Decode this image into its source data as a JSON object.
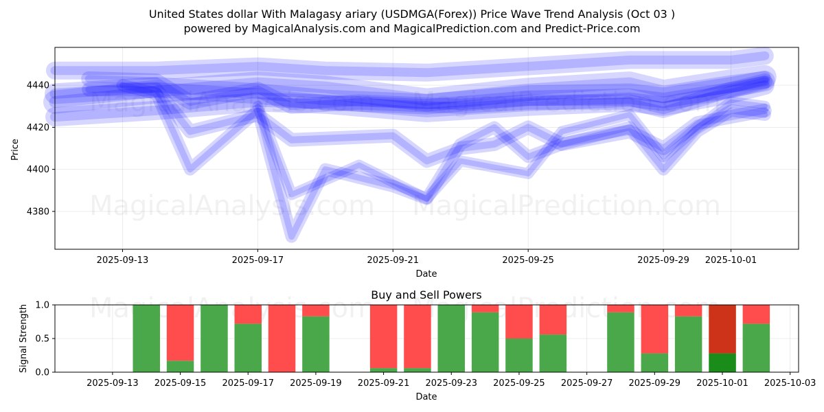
{
  "chart_data": [
    {
      "type": "line",
      "title": "United States dollar With Malagasy ariary (USDMGA(Forex)) Price Wave Trend Analysis (Oct 03 )",
      "subtitle": "powered by MagicalAnalysis.com and MagicalPrediction.com and Predict-Price.com",
      "xlabel": "Date",
      "ylabel": "Price",
      "xlim": [
        "2025-09-11",
        "2025-10-03"
      ],
      "ylim": [
        4362,
        4458
      ],
      "x_ticks": [
        "2025-09-13",
        "2025-09-17",
        "2025-09-21",
        "2025-09-25",
        "2025-09-29",
        "2025-10-01"
      ],
      "y_ticks": [
        4380,
        4400,
        4420,
        4440
      ],
      "grid": true,
      "watermarks": [
        "MagicalAnalysis.com",
        "MagicalPrediction.com",
        "MagicalAnalysis.com",
        "MagicalPrediction.com"
      ],
      "color": "#0000ff",
      "series": [
        {
          "points": [
            [
              "2025-09-11",
              4432
            ],
            [
              "2025-09-14",
              4437
            ],
            [
              "2025-09-17",
              4441
            ],
            [
              "2025-09-19",
              4439
            ],
            [
              "2025-09-22",
              4433
            ],
            [
              "2025-09-25",
              4438
            ],
            [
              "2025-09-28",
              4441
            ],
            [
              "2025-09-29",
              4437
            ],
            [
              "2025-10-01",
              4442
            ],
            [
              "2025-10-02",
              4444
            ]
          ]
        },
        {
          "points": [
            [
              "2025-09-11",
              4436
            ],
            [
              "2025-09-14",
              4439
            ],
            [
              "2025-09-17",
              4436
            ],
            [
              "2025-09-19",
              4433
            ],
            [
              "2025-09-22",
              4431
            ],
            [
              "2025-09-25",
              4435
            ],
            [
              "2025-09-28",
              4436
            ],
            [
              "2025-09-29",
              4434
            ],
            [
              "2025-10-01",
              4439
            ],
            [
              "2025-10-02",
              4442
            ]
          ]
        },
        {
          "points": [
            [
              "2025-09-11",
              4425
            ],
            [
              "2025-09-14",
              4428
            ],
            [
              "2025-09-17",
              4432
            ],
            [
              "2025-09-19",
              4431
            ],
            [
              "2025-09-22",
              4427
            ],
            [
              "2025-09-25",
              4430
            ],
            [
              "2025-09-28",
              4432
            ],
            [
              "2025-09-29",
              4430
            ],
            [
              "2025-10-01",
              4436
            ],
            [
              "2025-10-02",
              4440
            ]
          ]
        },
        {
          "points": [
            [
              "2025-09-11",
              4447
            ],
            [
              "2025-09-14",
              4447
            ],
            [
              "2025-09-17",
              4449
            ],
            [
              "2025-09-19",
              4447
            ],
            [
              "2025-09-22",
              4446
            ],
            [
              "2025-09-25",
              4449
            ],
            [
              "2025-09-28",
              4452
            ],
            [
              "2025-09-29",
              4452
            ],
            [
              "2025-10-01",
              4452
            ],
            [
              "2025-10-02",
              4454
            ]
          ]
        },
        {
          "points": [
            [
              "2025-09-12",
              4443
            ],
            [
              "2025-09-14",
              4442
            ],
            [
              "2025-09-15",
              4432
            ],
            [
              "2025-09-17",
              4438
            ],
            [
              "2025-09-18",
              4430
            ],
            [
              "2025-09-20",
              4432
            ],
            [
              "2025-09-23",
              4430
            ],
            [
              "2025-09-25",
              4432
            ],
            [
              "2025-09-28",
              4432
            ],
            [
              "2025-09-29",
              4428
            ],
            [
              "2025-10-01",
              4438
            ],
            [
              "2025-10-02",
              4442
            ]
          ]
        },
        {
          "points": [
            [
              "2025-09-12",
              4438
            ],
            [
              "2025-09-14",
              4438
            ],
            [
              "2025-09-15",
              4418
            ],
            [
              "2025-09-16",
              4422
            ],
            [
              "2025-09-17",
              4426
            ],
            [
              "2025-09-18",
              4414
            ],
            [
              "2025-09-21",
              4416
            ],
            [
              "2025-09-22",
              4404
            ],
            [
              "2025-09-23",
              4410
            ],
            [
              "2025-09-24",
              4412
            ],
            [
              "2025-09-25",
              4420
            ],
            [
              "2025-09-26",
              4412
            ],
            [
              "2025-09-28",
              4418
            ],
            [
              "2025-09-29",
              4410
            ],
            [
              "2025-09-30",
              4422
            ],
            [
              "2025-10-02",
              4428
            ]
          ]
        },
        {
          "points": [
            [
              "2025-09-13",
              4440
            ],
            [
              "2025-09-14",
              4436
            ],
            [
              "2025-09-15",
              4400
            ],
            [
              "2025-09-16",
              4414
            ],
            [
              "2025-09-17",
              4428
            ],
            [
              "2025-09-18",
              4368
            ],
            [
              "2025-09-19",
              4400
            ],
            [
              "2025-09-21",
              4392
            ],
            [
              "2025-09-22",
              4386
            ],
            [
              "2025-09-23",
              4412
            ],
            [
              "2025-09-24",
              4420
            ],
            [
              "2025-09-25",
              4406
            ],
            [
              "2025-09-26",
              4412
            ],
            [
              "2025-09-28",
              4420
            ],
            [
              "2025-09-29",
              4400
            ],
            [
              "2025-09-30",
              4418
            ],
            [
              "2025-10-01",
              4428
            ],
            [
              "2025-10-02",
              4426
            ]
          ]
        },
        {
          "points": [
            [
              "2025-09-17",
              4430
            ],
            [
              "2025-09-18",
              4388
            ],
            [
              "2025-09-20",
              4402
            ],
            [
              "2025-09-22",
              4386
            ],
            [
              "2025-09-23",
              4404
            ],
            [
              "2025-09-25",
              4398
            ],
            [
              "2025-09-26",
              4418
            ],
            [
              "2025-09-28",
              4426
            ],
            [
              "2025-09-29",
              4406
            ],
            [
              "2025-09-30",
              4420
            ],
            [
              "2025-10-01",
              4432
            ],
            [
              "2025-10-02",
              4430
            ]
          ]
        }
      ]
    },
    {
      "type": "bar",
      "title": "Buy and Sell Powers",
      "xlabel": "Date",
      "ylabel": "Signal Strength",
      "xlim": [
        "2025-09-12",
        "2025-10-03"
      ],
      "ylim": [
        0,
        1
      ],
      "x_ticks": [
        "2025-09-13",
        "2025-09-15",
        "2025-09-17",
        "2025-09-19",
        "2025-09-21",
        "2025-09-23",
        "2025-09-25",
        "2025-09-27",
        "2025-09-29",
        "2025-10-01",
        "2025-10-03"
      ],
      "y_ticks": [
        "0.0",
        "0.5",
        "1.0"
      ],
      "grid": true,
      "colors": {
        "buy": "#4aa84a",
        "sell": "#ff4c4c",
        "buy_strong": "#1a8c1a",
        "sell_strong": "#cc3318"
      },
      "categories": [
        "2025-09-14",
        "2025-09-15",
        "2025-09-16",
        "2025-09-17",
        "2025-09-18",
        "2025-09-19",
        "2025-09-21",
        "2025-09-22",
        "2025-09-23",
        "2025-09-24",
        "2025-09-25",
        "2025-09-26",
        "2025-09-28",
        "2025-09-29",
        "2025-09-30",
        "2025-10-01",
        "2025-10-02"
      ],
      "series": [
        {
          "values": [
            1.0,
            0.17,
            1.0,
            0.72,
            0.0,
            0.83,
            0.06,
            0.06,
            1.0,
            0.89,
            0.5,
            0.56,
            0.89,
            0.28,
            0.83,
            0.28,
            0.72
          ]
        },
        {
          "values": [
            0.0,
            0.83,
            0.0,
            0.28,
            1.0,
            0.17,
            0.94,
            0.94,
            0.0,
            0.11,
            0.5,
            0.44,
            0.11,
            0.72,
            0.17,
            0.72,
            0.28
          ]
        }
      ],
      "strong": [
        false,
        false,
        false,
        false,
        false,
        false,
        false,
        false,
        false,
        false,
        false,
        false,
        false,
        false,
        false,
        true,
        false
      ]
    }
  ]
}
